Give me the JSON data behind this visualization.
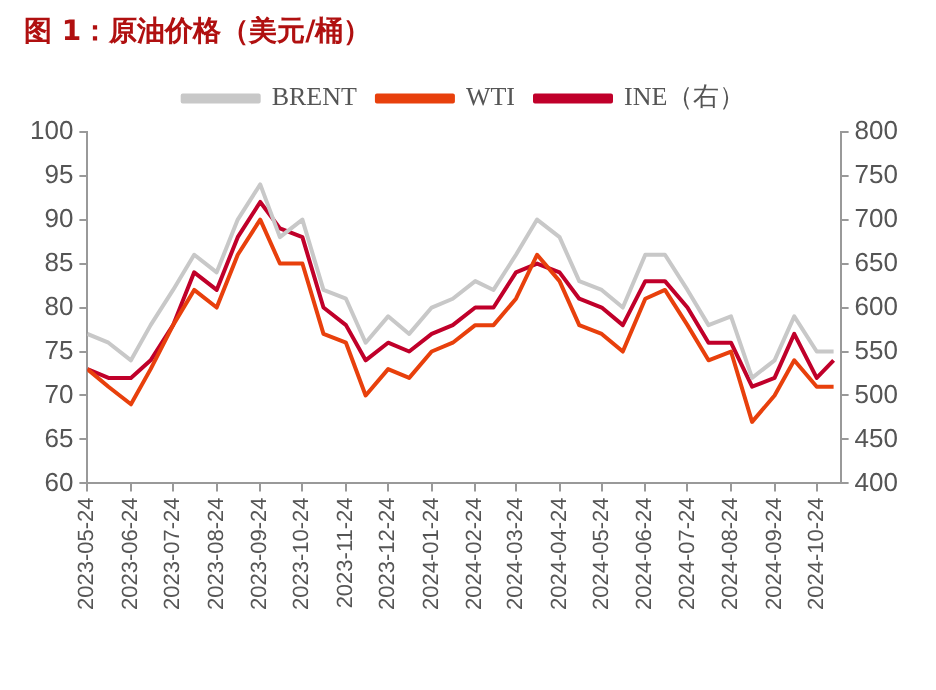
{
  "chart_data": {
    "type": "line",
    "title": "图 1：原油价格（美元/桶）",
    "x": [
      "2023-05-24",
      "2023-06-08",
      "2023-06-24",
      "2023-07-08",
      "2023-07-24",
      "2023-08-08",
      "2023-08-24",
      "2023-09-08",
      "2023-09-24",
      "2023-10-08",
      "2023-10-24",
      "2023-11-08",
      "2023-11-24",
      "2023-12-08",
      "2023-12-24",
      "2024-01-08",
      "2024-01-24",
      "2024-02-08",
      "2024-02-24",
      "2024-03-08",
      "2024-03-24",
      "2024-04-08",
      "2024-04-24",
      "2024-05-08",
      "2024-05-24",
      "2024-06-08",
      "2024-06-24",
      "2024-07-08",
      "2024-07-24",
      "2024-08-08",
      "2024-08-24",
      "2024-09-08",
      "2024-09-24",
      "2024-10-08",
      "2024-10-24",
      "2024-11-05"
    ],
    "series": [
      {
        "name": "BRENT",
        "color": "#c8c8c8",
        "values": [
          77,
          76,
          74,
          78,
          82,
          86,
          84,
          90,
          94,
          88,
          90,
          82,
          81,
          76,
          79,
          77,
          80,
          81,
          83,
          82,
          86,
          90,
          88,
          83,
          82,
          80,
          86,
          86,
          82,
          78,
          79,
          72,
          74,
          79,
          75,
          75
        ]
      },
      {
        "name": "WTI",
        "color": "#e8400c",
        "values": [
          73,
          71,
          69,
          73,
          78,
          82,
          80,
          86,
          90,
          85,
          85,
          77,
          76,
          70,
          73,
          72,
          75,
          76,
          78,
          78,
          81,
          86,
          83,
          78,
          77,
          75,
          81,
          82,
          78,
          74,
          75,
          67,
          70,
          74,
          71,
          71
        ]
      },
      {
        "name": "INE（右）",
        "color": "#c0002a",
        "axis": "y2",
        "values": [
          530,
          520,
          520,
          540,
          580,
          640,
          620,
          680,
          720,
          690,
          680,
          600,
          580,
          540,
          560,
          550,
          570,
          580,
          600,
          600,
          640,
          650,
          640,
          610,
          600,
          580,
          630,
          630,
          600,
          560,
          560,
          510,
          520,
          570,
          520,
          540
        ]
      }
    ],
    "xlim": [
      "2023-05-24",
      "2024-11-10"
    ],
    "xticks": [
      "2023-05-24",
      "2023-06-24",
      "2023-07-24",
      "2023-08-24",
      "2023-09-24",
      "2023-10-24",
      "2023-11-24",
      "2023-12-24",
      "2024-01-24",
      "2024-02-24",
      "2024-03-24",
      "2024-04-24",
      "2024-05-24",
      "2024-06-24",
      "2024-07-24",
      "2024-08-24",
      "2024-09-24",
      "2024-10-24"
    ],
    "ylim": [
      60,
      100
    ],
    "yticks": [
      60,
      65,
      70,
      75,
      80,
      85,
      90,
      95,
      100
    ],
    "y2lim": [
      400,
      800
    ],
    "y2ticks": [
      400,
      450,
      500,
      550,
      600,
      650,
      700,
      750,
      800
    ],
    "grid": false,
    "legend": "top",
    "marker": "none",
    "line_style": "solid"
  }
}
